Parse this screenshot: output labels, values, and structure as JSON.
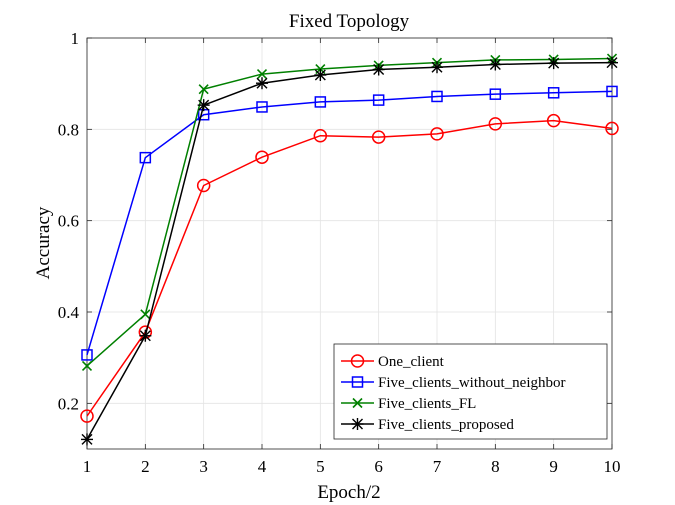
{
  "chart_data": {
    "type": "line",
    "title": "Fixed Topology",
    "xlabel": "Epoch/2",
    "ylabel": "Accuracy",
    "x": [
      1,
      2,
      3,
      4,
      5,
      6,
      7,
      8,
      9,
      10
    ],
    "xlim": [
      1,
      10
    ],
    "ylim": [
      0.1,
      1.0
    ],
    "xticks": [
      "1",
      "2",
      "3",
      "4",
      "5",
      "6",
      "7",
      "8",
      "9",
      "10"
    ],
    "yticks": [
      {
        "value": 0.2,
        "label": "0.2"
      },
      {
        "value": 0.4,
        "label": "0.4"
      },
      {
        "value": 0.6,
        "label": "0.6"
      },
      {
        "value": 0.8,
        "label": "0.8"
      },
      {
        "value": 1.0,
        "label": "1"
      }
    ],
    "grid": true,
    "legend_position": "bottom-right",
    "series": [
      {
        "name": "One_client",
        "color": "#ff0000",
        "marker": "circle",
        "values": [
          0.172,
          0.356,
          0.677,
          0.739,
          0.786,
          0.783,
          0.79,
          0.812,
          0.819,
          0.802
        ]
      },
      {
        "name": "Five_clients_without_neighbor",
        "color": "#0000ff",
        "marker": "square",
        "values": [
          0.306,
          0.738,
          0.832,
          0.849,
          0.86,
          0.864,
          0.872,
          0.877,
          0.88,
          0.883
        ]
      },
      {
        "name": "Five_clients_FL",
        "color": "#008000",
        "marker": "x",
        "values": [
          0.282,
          0.395,
          0.888,
          0.921,
          0.932,
          0.94,
          0.946,
          0.952,
          0.953,
          0.955
        ]
      },
      {
        "name": "Five_clients_proposed",
        "color": "#000000",
        "marker": "asterisk",
        "values": [
          0.121,
          0.348,
          0.853,
          0.901,
          0.919,
          0.931,
          0.936,
          0.942,
          0.945,
          0.946
        ]
      }
    ]
  }
}
